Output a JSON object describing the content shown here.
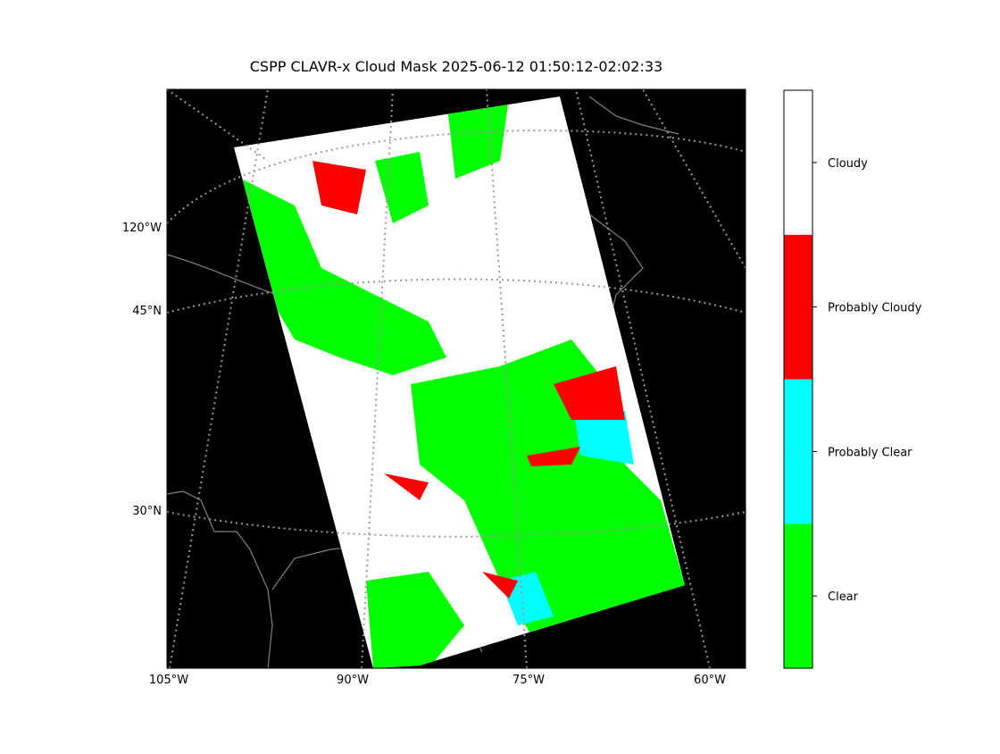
{
  "title": "CSPP CLAVR-x Cloud Mask 2025-06-12 01:50:12-02:02:33",
  "map": {
    "lon_labels": [
      "105°W",
      "90°W",
      "75°W",
      "60°W"
    ],
    "lat_labels": [
      "120°W",
      "45°N",
      "30°N"
    ]
  },
  "colorbar": {
    "categories": [
      {
        "label": "Clear",
        "color": "#00ff00"
      },
      {
        "label": "Probably Clear",
        "color": "#00ffff"
      },
      {
        "label": "Probably Cloudy",
        "color": "#ff0000"
      },
      {
        "label": "Cloudy",
        "color": "#ffffff"
      }
    ]
  }
}
